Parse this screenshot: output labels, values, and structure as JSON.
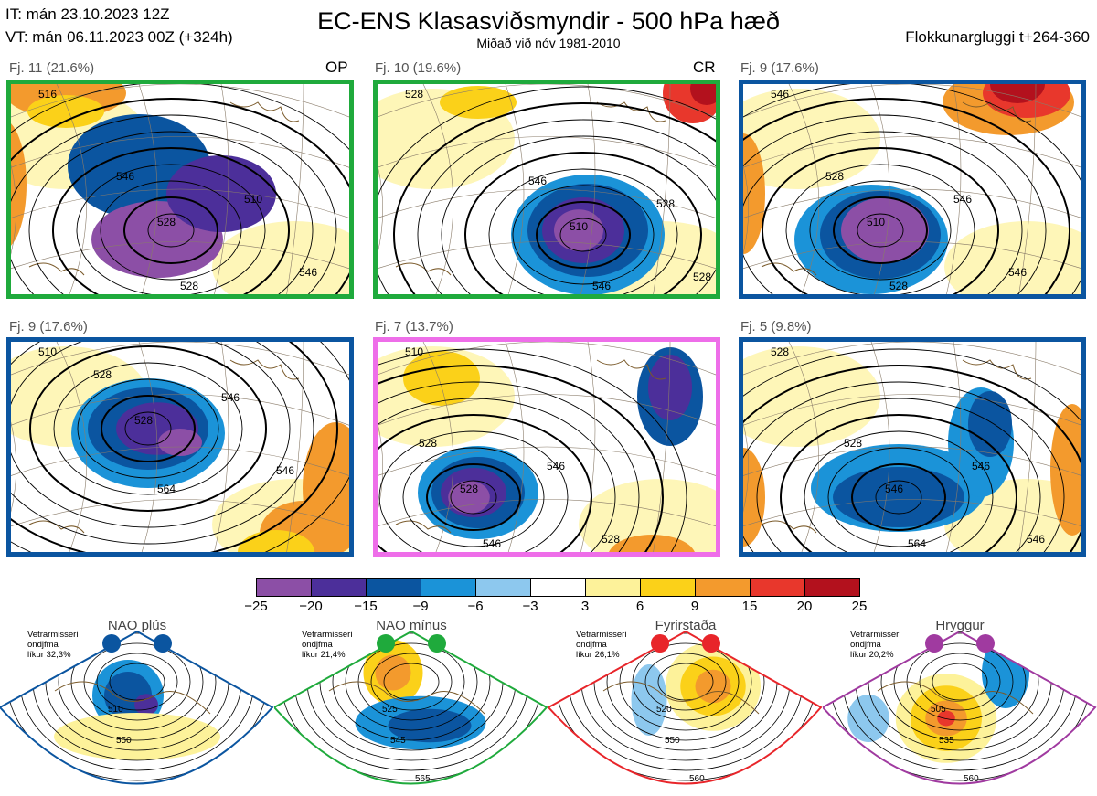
{
  "header": {
    "initial_time": "IT: mán 23.10.2023 12Z",
    "valid_time": "VT: mán 06.11.2023 00Z  (+324h)",
    "title": "EC-ENS Klasasviðsmyndir - 500 hPa hæð",
    "subtitle": "Miðað við nóv 1981-2010",
    "cluster_window": "Flokkunargluggi t+264-360"
  },
  "panels": [
    {
      "label": "Fj. 11 (21.6%)",
      "tag": "OP",
      "border": "#1faa3c",
      "contours": [
        "516",
        "528",
        "546",
        "510",
        "528",
        "546"
      ]
    },
    {
      "label": "Fj. 10 (19.6%)",
      "tag": "CR",
      "border": "#1faa3c",
      "contours": [
        "528",
        "510",
        "546",
        "528",
        "546",
        "528"
      ]
    },
    {
      "label": "Fj. 9 (17.6%)",
      "tag": "",
      "border": "#0b55a0",
      "contours": [
        "546",
        "510",
        "528",
        "546",
        "528",
        "546"
      ]
    },
    {
      "label": "Fj. 9 (17.6%)",
      "tag": "",
      "border": "#0b55a0",
      "contours": [
        "510",
        "528",
        "528",
        "546",
        "564",
        "546"
      ]
    },
    {
      "label": "Fj. 7 (13.7%)",
      "tag": "",
      "border": "#ee6ee9",
      "contours": [
        "510",
        "528",
        "528",
        "546",
        "546",
        "528"
      ]
    },
    {
      "label": "Fj. 5 (9.8%)",
      "tag": "",
      "border": "#0b55a0",
      "contours": [
        "528",
        "546",
        "528",
        "546",
        "564",
        "546"
      ]
    }
  ],
  "colorbar": {
    "colors": [
      "#8c4fa6",
      "#4c2f9a",
      "#0b55a0",
      "#1b93d8",
      "#8dc8ee",
      "#ffffff",
      "#fdf29a",
      "#fbd119",
      "#f39a2d",
      "#e8372c",
      "#b3111d"
    ],
    "ticks": [
      "−25",
      "−20",
      "−15",
      "−9",
      "−6",
      "−3",
      "3",
      "6",
      "9",
      "15",
      "20",
      "25"
    ]
  },
  "regimes": [
    {
      "name": "NAO plús",
      "note": [
        "Vetrarmisseri",
        "ondjfma",
        "líkur 32,3%"
      ],
      "color": "#0b55a0",
      "labels": [
        "510",
        "550"
      ]
    },
    {
      "name": "NAO mínus",
      "note": [
        "Vetrarmisseri",
        "ondjfma",
        "líkur 21,4%"
      ],
      "color": "#1faa3c",
      "labels": [
        "525",
        "545",
        "565"
      ]
    },
    {
      "name": "Fyrirstaða",
      "note": [
        "Vetrarmisseri",
        "ondjfma",
        "líkur 26,1%"
      ],
      "color": "#e8252a",
      "labels": [
        "520",
        "550",
        "560"
      ]
    },
    {
      "name": "Hryggur",
      "note": [
        "Vetrarmisseri",
        "ondjfma",
        "líkur 20,2%"
      ],
      "color": "#a03aa0",
      "labels": [
        "505",
        "535",
        "560"
      ]
    }
  ]
}
